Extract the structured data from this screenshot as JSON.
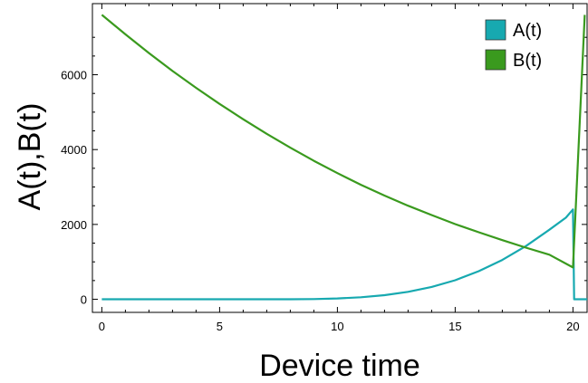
{
  "chart_data": {
    "type": "line",
    "xlabel": "Device time",
    "ylabel": "A(t),B(t)",
    "xlim": [
      -0.4,
      20.6
    ],
    "ylim": [
      -350,
      7900
    ],
    "x_ticks": [
      0,
      5,
      10,
      15,
      20
    ],
    "y_ticks": [
      0,
      2000,
      4000,
      6000
    ],
    "legend": "top-right",
    "grid": false,
    "series": [
      {
        "name": "A(t)",
        "color": "#17a9b0",
        "points": [
          [
            0,
            0
          ],
          [
            5,
            0
          ],
          [
            8,
            2
          ],
          [
            9,
            6
          ],
          [
            10,
            22
          ],
          [
            11,
            55
          ],
          [
            12,
            110
          ],
          [
            13,
            200
          ],
          [
            14,
            330
          ],
          [
            15,
            510
          ],
          [
            16,
            750
          ],
          [
            17,
            1050
          ],
          [
            18,
            1420
          ],
          [
            19,
            1860
          ],
          [
            19.7,
            2180
          ],
          [
            20,
            2400
          ],
          [
            20.05,
            0
          ],
          [
            20.3,
            0
          ],
          [
            20.6,
            0
          ]
        ]
      },
      {
        "name": "B(t)",
        "color": "#3a9a1e",
        "points": [
          [
            0,
            7600
          ],
          [
            1,
            7080
          ],
          [
            2,
            6580
          ],
          [
            3,
            6100
          ],
          [
            4,
            5650
          ],
          [
            5,
            5220
          ],
          [
            6,
            4810
          ],
          [
            7,
            4420
          ],
          [
            8,
            4050
          ],
          [
            9,
            3700
          ],
          [
            10,
            3370
          ],
          [
            11,
            3060
          ],
          [
            12,
            2770
          ],
          [
            13,
            2500
          ],
          [
            14,
            2250
          ],
          [
            15,
            2010
          ],
          [
            16,
            1790
          ],
          [
            17,
            1580
          ],
          [
            18,
            1380
          ],
          [
            19,
            1190
          ],
          [
            20,
            850
          ],
          [
            20.5,
            7600
          ]
        ]
      }
    ]
  }
}
